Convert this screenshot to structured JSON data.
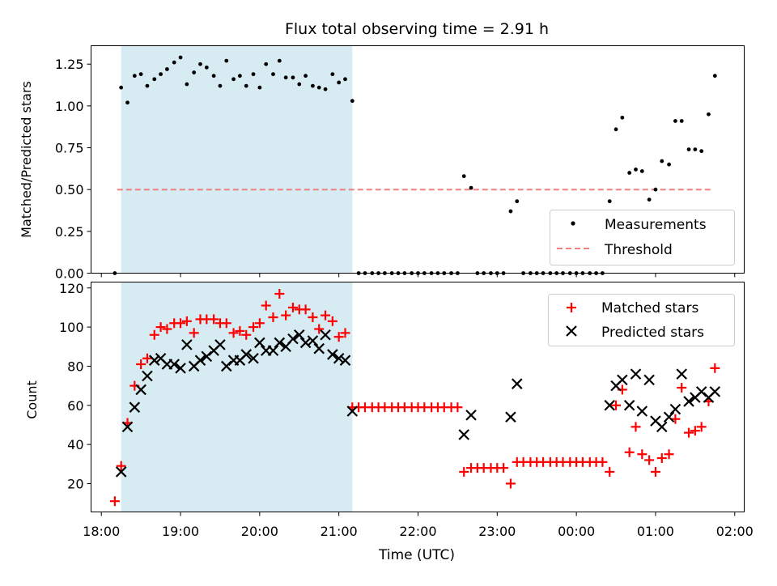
{
  "figure": {
    "title": "Flux total observing time = 2.91 h",
    "xlabel": "Time (UTC)"
  },
  "chart_data": [
    {
      "type": "scatter",
      "ylabel": "Matched/Predicted stars",
      "ylim": [
        0,
        1.36
      ],
      "xlim_hours": [
        17.87,
        26.12
      ],
      "yticks": [
        0.0,
        0.25,
        0.5,
        0.75,
        1.0,
        1.25
      ],
      "ytick_labels": [
        "0.00",
        "0.25",
        "0.50",
        "0.75",
        "1.00",
        "1.25"
      ],
      "shaded_span_hours": [
        18.25,
        21.17
      ],
      "legend": {
        "placement": "lower-right",
        "entries": [
          "Measurements",
          "Threshold"
        ]
      },
      "threshold": {
        "name": "Threshold",
        "value": 0.5,
        "x_range_hours": [
          18.2,
          25.73
        ],
        "color": "#f08080"
      },
      "measurements": {
        "name": "Measurements",
        "color": "#000000",
        "points": [
          [
            18.17,
            0.0
          ],
          [
            18.25,
            1.11
          ],
          [
            18.33,
            1.02
          ],
          [
            18.42,
            1.18
          ],
          [
            18.5,
            1.19
          ],
          [
            18.58,
            1.12
          ],
          [
            18.67,
            1.16
          ],
          [
            18.75,
            1.19
          ],
          [
            18.83,
            1.22
          ],
          [
            18.92,
            1.26
          ],
          [
            19.0,
            1.29
          ],
          [
            19.08,
            1.13
          ],
          [
            19.17,
            1.2
          ],
          [
            19.25,
            1.25
          ],
          [
            19.33,
            1.23
          ],
          [
            19.42,
            1.18
          ],
          [
            19.5,
            1.12
          ],
          [
            19.58,
            1.27
          ],
          [
            19.67,
            1.16
          ],
          [
            19.75,
            1.18
          ],
          [
            19.83,
            1.12
          ],
          [
            19.92,
            1.19
          ],
          [
            20.0,
            1.11
          ],
          [
            20.08,
            1.25
          ],
          [
            20.17,
            1.19
          ],
          [
            20.25,
            1.27
          ],
          [
            20.33,
            1.17
          ],
          [
            20.42,
            1.17
          ],
          [
            20.5,
            1.13
          ],
          [
            20.58,
            1.18
          ],
          [
            20.67,
            1.12
          ],
          [
            20.75,
            1.11
          ],
          [
            20.83,
            1.1
          ],
          [
            20.92,
            1.19
          ],
          [
            21.0,
            1.14
          ],
          [
            21.08,
            1.16
          ],
          [
            21.17,
            1.03
          ],
          [
            21.25,
            0.0
          ],
          [
            21.33,
            0.0
          ],
          [
            21.42,
            0.0
          ],
          [
            21.5,
            0.0
          ],
          [
            21.58,
            0.0
          ],
          [
            21.67,
            0.0
          ],
          [
            21.75,
            0.0
          ],
          [
            21.83,
            0.0
          ],
          [
            21.92,
            0.0
          ],
          [
            22.0,
            0.0
          ],
          [
            22.08,
            0.0
          ],
          [
            22.17,
            0.0
          ],
          [
            22.25,
            0.0
          ],
          [
            22.33,
            0.0
          ],
          [
            22.42,
            0.0
          ],
          [
            22.5,
            0.0
          ],
          [
            22.58,
            0.58
          ],
          [
            22.67,
            0.51
          ],
          [
            22.75,
            0.0
          ],
          [
            22.83,
            0.0
          ],
          [
            22.92,
            0.0
          ],
          [
            23.0,
            0.0
          ],
          [
            23.08,
            0.0
          ],
          [
            23.17,
            0.37
          ],
          [
            23.25,
            0.43
          ],
          [
            23.33,
            0.0
          ],
          [
            23.42,
            0.0
          ],
          [
            23.5,
            0.0
          ],
          [
            23.58,
            0.0
          ],
          [
            23.67,
            0.0
          ],
          [
            23.75,
            0.0
          ],
          [
            23.83,
            0.0
          ],
          [
            23.92,
            0.0
          ],
          [
            24.0,
            0.0
          ],
          [
            24.08,
            0.0
          ],
          [
            24.17,
            0.0
          ],
          [
            24.25,
            0.0
          ],
          [
            24.33,
            0.0
          ],
          [
            24.42,
            0.43
          ],
          [
            24.5,
            0.86
          ],
          [
            24.58,
            0.93
          ],
          [
            24.67,
            0.6
          ],
          [
            24.75,
            0.62
          ],
          [
            24.83,
            0.61
          ],
          [
            24.92,
            0.44
          ],
          [
            25.0,
            0.5
          ],
          [
            25.08,
            0.67
          ],
          [
            25.17,
            0.65
          ],
          [
            25.25,
            0.91
          ],
          [
            25.33,
            0.91
          ],
          [
            25.42,
            0.74
          ],
          [
            25.5,
            0.74
          ],
          [
            25.58,
            0.73
          ],
          [
            25.67,
            0.95
          ],
          [
            25.75,
            1.18
          ]
        ]
      }
    },
    {
      "type": "scatter",
      "ylabel": "Count",
      "ylim": [
        5.5,
        123
      ],
      "xlim_hours": [
        17.87,
        26.12
      ],
      "yticks": [
        20,
        40,
        60,
        80,
        100,
        120
      ],
      "ytick_labels": [
        "20",
        "40",
        "60",
        "80",
        "100",
        "120"
      ],
      "xticks_hours": [
        18,
        19,
        20,
        21,
        22,
        23,
        24,
        25,
        26
      ],
      "xtick_labels": [
        "18:00",
        "19:00",
        "20:00",
        "21:00",
        "22:00",
        "23:00",
        "00:00",
        "01:00",
        "02:00"
      ],
      "shaded_span_hours": [
        18.25,
        21.17
      ],
      "legend": {
        "placement": "upper-right",
        "entries": [
          "Matched stars",
          "Predicted stars"
        ]
      },
      "series": [
        {
          "name": "Matched stars",
          "marker": "plus",
          "color": "#ff0000",
          "points": [
            [
              18.17,
              11
            ],
            [
              18.25,
              29
            ],
            [
              18.33,
              51
            ],
            [
              18.42,
              70
            ],
            [
              18.5,
              81
            ],
            [
              18.58,
              84
            ],
            [
              18.67,
              96
            ],
            [
              18.75,
              100
            ],
            [
              18.83,
              99
            ],
            [
              18.92,
              102
            ],
            [
              19.0,
              102
            ],
            [
              19.08,
              103
            ],
            [
              19.17,
              97
            ],
            [
              19.25,
              104
            ],
            [
              19.33,
              104
            ],
            [
              19.42,
              104
            ],
            [
              19.5,
              102
            ],
            [
              19.58,
              102
            ],
            [
              19.67,
              97
            ],
            [
              19.75,
              98
            ],
            [
              19.83,
              96
            ],
            [
              19.92,
              100
            ],
            [
              20.0,
              102
            ],
            [
              20.08,
              111
            ],
            [
              20.17,
              105
            ],
            [
              20.25,
              117
            ],
            [
              20.33,
              106
            ],
            [
              20.42,
              110
            ],
            [
              20.5,
              109
            ],
            [
              20.58,
              109
            ],
            [
              20.67,
              105
            ],
            [
              20.75,
              99
            ],
            [
              20.83,
              106
            ],
            [
              20.92,
              103
            ],
            [
              21.0,
              95
            ],
            [
              21.08,
              97
            ],
            [
              21.17,
              59
            ],
            [
              21.25,
              59
            ],
            [
              21.33,
              59
            ],
            [
              21.42,
              59
            ],
            [
              21.5,
              59
            ],
            [
              21.58,
              59
            ],
            [
              21.67,
              59
            ],
            [
              21.75,
              59
            ],
            [
              21.83,
              59
            ],
            [
              21.92,
              59
            ],
            [
              22.0,
              59
            ],
            [
              22.08,
              59
            ],
            [
              22.17,
              59
            ],
            [
              22.25,
              59
            ],
            [
              22.33,
              59
            ],
            [
              22.42,
              59
            ],
            [
              22.5,
              59
            ],
            [
              22.58,
              26
            ],
            [
              22.67,
              28
            ],
            [
              22.75,
              28
            ],
            [
              22.83,
              28
            ],
            [
              22.92,
              28
            ],
            [
              23.0,
              28
            ],
            [
              23.08,
              28
            ],
            [
              23.17,
              20
            ],
            [
              23.25,
              31
            ],
            [
              23.33,
              31
            ],
            [
              23.42,
              31
            ],
            [
              23.5,
              31
            ],
            [
              23.58,
              31
            ],
            [
              23.67,
              31
            ],
            [
              23.75,
              31
            ],
            [
              23.83,
              31
            ],
            [
              23.92,
              31
            ],
            [
              24.0,
              31
            ],
            [
              24.08,
              31
            ],
            [
              24.17,
              31
            ],
            [
              24.25,
              31
            ],
            [
              24.33,
              31
            ],
            [
              24.42,
              26
            ],
            [
              24.5,
              60
            ],
            [
              24.58,
              68
            ],
            [
              24.67,
              36
            ],
            [
              24.75,
              49
            ],
            [
              24.83,
              35
            ],
            [
              24.92,
              32
            ],
            [
              25.0,
              26
            ],
            [
              25.08,
              33
            ],
            [
              25.17,
              35
            ],
            [
              25.25,
              53
            ],
            [
              25.33,
              69
            ],
            [
              25.42,
              46
            ],
            [
              25.5,
              47
            ],
            [
              25.58,
              49
            ],
            [
              25.67,
              62
            ],
            [
              25.75,
              79
            ]
          ]
        },
        {
          "name": "Predicted stars",
          "marker": "x",
          "color": "#000000",
          "points": [
            [
              18.25,
              26
            ],
            [
              18.33,
              49
            ],
            [
              18.42,
              59
            ],
            [
              18.5,
              68
            ],
            [
              18.58,
              75
            ],
            [
              18.67,
              83
            ],
            [
              18.75,
              84
            ],
            [
              18.83,
              81
            ],
            [
              18.92,
              81
            ],
            [
              19.0,
              79
            ],
            [
              19.08,
              91
            ],
            [
              19.17,
              80
            ],
            [
              19.25,
              83
            ],
            [
              19.33,
              85
            ],
            [
              19.42,
              88
            ],
            [
              19.5,
              91
            ],
            [
              19.58,
              80
            ],
            [
              19.67,
              83
            ],
            [
              19.75,
              83
            ],
            [
              19.83,
              86
            ],
            [
              19.92,
              84
            ],
            [
              20.0,
              92
            ],
            [
              20.08,
              88
            ],
            [
              20.17,
              88
            ],
            [
              20.25,
              92
            ],
            [
              20.33,
              90
            ],
            [
              20.42,
              94
            ],
            [
              20.5,
              96
            ],
            [
              20.58,
              92
            ],
            [
              20.67,
              93
            ],
            [
              20.75,
              89
            ],
            [
              20.83,
              96
            ],
            [
              20.92,
              86
            ],
            [
              21.0,
              84
            ],
            [
              21.08,
              83
            ],
            [
              21.17,
              57
            ],
            [
              22.58,
              45
            ],
            [
              22.67,
              55
            ],
            [
              23.17,
              54
            ],
            [
              23.25,
              71
            ],
            [
              24.42,
              60
            ],
            [
              24.5,
              70
            ],
            [
              24.58,
              73
            ],
            [
              24.67,
              60
            ],
            [
              24.75,
              76
            ],
            [
              24.83,
              57
            ],
            [
              24.92,
              73
            ],
            [
              25.0,
              52
            ],
            [
              25.08,
              49
            ],
            [
              25.17,
              54
            ],
            [
              25.25,
              58
            ],
            [
              25.33,
              76
            ],
            [
              25.42,
              62
            ],
            [
              25.5,
              64
            ],
            [
              25.58,
              67
            ],
            [
              25.67,
              64
            ],
            [
              25.75,
              67
            ]
          ]
        }
      ]
    }
  ]
}
